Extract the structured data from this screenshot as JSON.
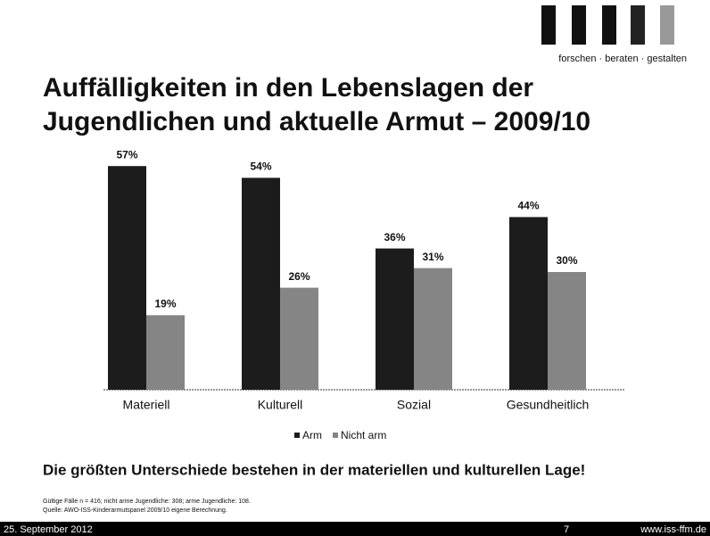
{
  "header": {
    "logo_text": "forschen · beraten · gestalten"
  },
  "chart_data": {
    "type": "bar",
    "title": [
      "Auffälligkeiten in den Lebenslagen der",
      "Jugendlichen und aktuelle Armut – 2009/10"
    ],
    "categories": [
      "Materiell",
      "Kulturell",
      "Sozial",
      "Gesundheitlich"
    ],
    "series": [
      {
        "name": "Arm",
        "color": "#1c1c1c",
        "values": [
          57,
          54,
          36,
          44
        ],
        "value_labels": [
          "57%",
          "54%",
          "36%",
          "44%"
        ]
      },
      {
        "name": "Nicht arm",
        "color": "#858585",
        "values": [
          19,
          26,
          31,
          30
        ],
        "value_labels": [
          "19%",
          "26%",
          "31%",
          "30%"
        ]
      }
    ],
    "legend": "bottom"
  },
  "conclusion": "Die größten Unterschiede bestehen in der materiellen und kulturellen Lage!",
  "notes": [
    "Gültige Fälle n = 416; nicht arme Jugendliche: 308; arme Jugendliche: 108.",
    "Quelle: AWO-ISS-Kinderarmutspanel 2009/10 eigene Berechnung."
  ],
  "footer": {
    "date": "25. September 2012",
    "page": "7",
    "url": "www.iss-ffm.de"
  }
}
